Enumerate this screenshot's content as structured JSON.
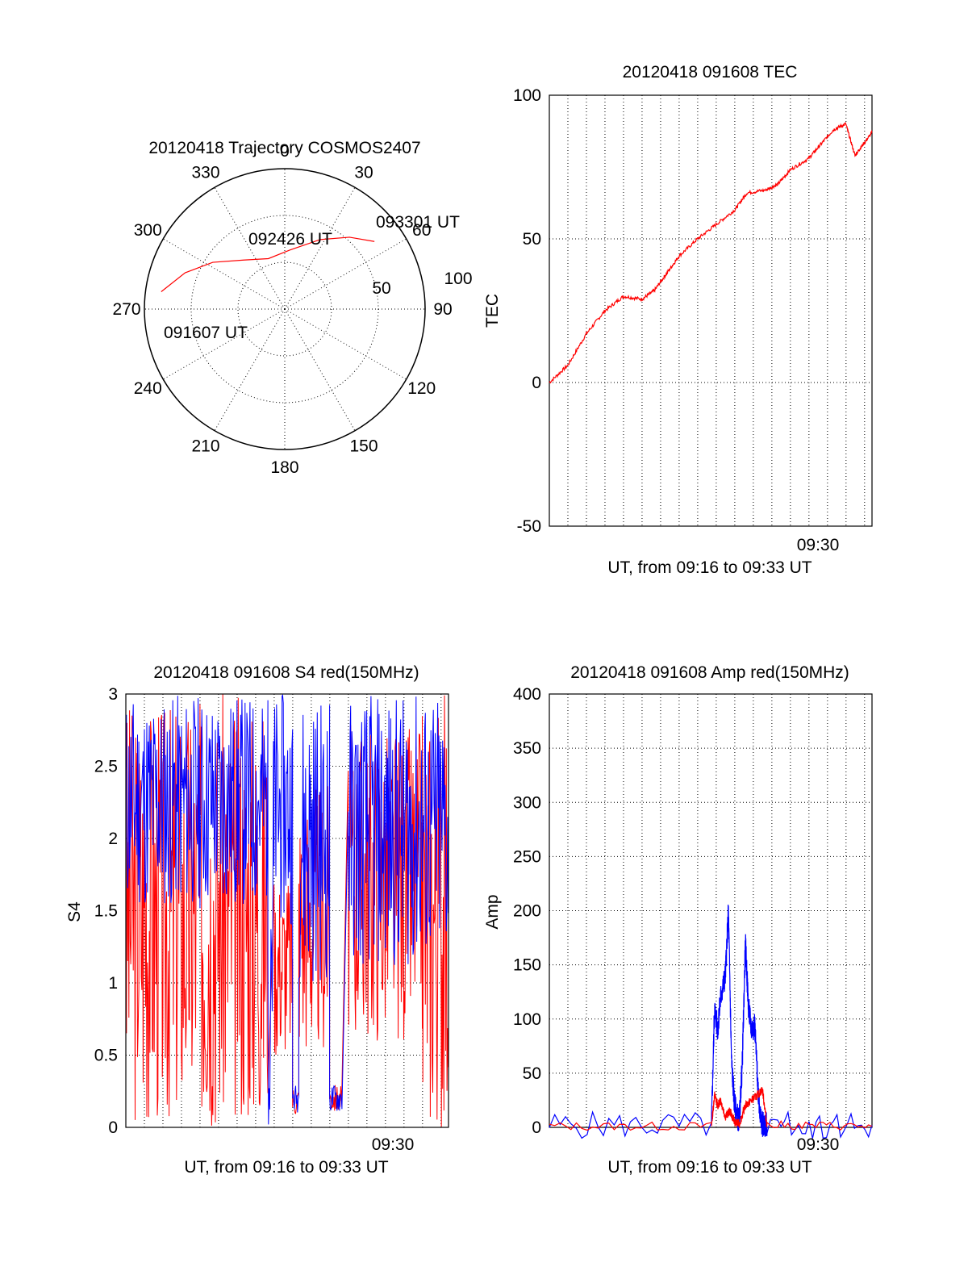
{
  "colors": {
    "red": "#ff0000",
    "blue": "#0000ff",
    "axis": "#000000"
  },
  "chart_data": [
    {
      "type": "polar",
      "title": "20120418 Trajectory COSMOS2407",
      "azimuth_labels": [
        "0",
        "30",
        "60",
        "90",
        "120",
        "150",
        "180",
        "210",
        "240",
        "270",
        "300",
        "330"
      ],
      "radius_labels": [
        "50",
        "100"
      ],
      "elevation_range": [
        0,
        90
      ],
      "series": [
        {
          "color": "red",
          "points": [
            {
              "az": 278,
              "el": 10
            },
            {
              "az": 290,
              "el": 22
            },
            {
              "az": 303,
              "el": 35
            },
            {
              "az": 320,
              "el": 49
            },
            {
              "az": 342,
              "el": 56
            },
            {
              "az": 5,
              "el": 52
            },
            {
              "az": 27,
              "el": 40
            },
            {
              "az": 42,
              "el": 28
            },
            {
              "az": 53,
              "el": 18
            }
          ]
        }
      ],
      "annotations": [
        "093301 UT",
        "092426 UT",
        "091607 UT"
      ]
    },
    {
      "type": "line",
      "title": "20120418 091608 TEC",
      "xlabel": "UT, from 09:16 to 09:33 UT",
      "ylabel": "TEC",
      "xlim": [
        0,
        1045
      ],
      "ylim": [
        -50,
        100
      ],
      "yticks": [
        "-50",
        "0",
        "50",
        "100"
      ],
      "xtick_label": "09:30",
      "grid": true,
      "series": [
        {
          "color": "red",
          "x": [
            0,
            60,
            120,
            180,
            240,
            300,
            340,
            380,
            420,
            480,
            540,
            600,
            640,
            700,
            740,
            780,
            840,
            880,
            920,
            960,
            990,
            1010,
            1045
          ],
          "y": [
            0,
            6,
            17,
            25,
            30,
            29,
            32,
            38,
            44,
            50,
            55,
            60,
            66,
            67,
            69,
            74,
            78,
            83,
            88,
            90,
            79,
            82,
            87
          ]
        }
      ]
    },
    {
      "type": "line",
      "title": "20120418 091608 S4 red(150MHz)",
      "xlabel": "UT, from 09:16 to 09:33 UT",
      "ylabel": "S4",
      "xlim": [
        0,
        1045
      ],
      "ylim": [
        0,
        3
      ],
      "yticks": [
        "0",
        "0.5",
        "1",
        "1.5",
        "2",
        "2.5",
        "3"
      ],
      "xtick_label": "09:30",
      "grid": true,
      "series": [
        {
          "color": "red",
          "segments": [
            [
              0,
              250,
              0,
              3
            ],
            [
              250,
              460,
              0.0,
              3
            ],
            [
              480,
              540,
              0.5,
              1.8
            ],
            [
              540,
              560,
              0.08,
              0.3
            ],
            [
              560,
              660,
              0.5,
              2.4
            ],
            [
              660,
              700,
              0.1,
              0.3
            ],
            [
              720,
              960,
              0.6,
              2.8
            ],
            [
              960,
              1045,
              0,
              3
            ]
          ]
        },
        {
          "color": "blue",
          "segments": [
            [
              0,
              460,
              1.5,
              3
            ],
            [
              460,
              480,
              0,
              3
            ],
            [
              480,
              540,
              1.4,
              3
            ],
            [
              540,
              560,
              0.1,
              0.3
            ],
            [
              560,
              660,
              1.0,
              3
            ],
            [
              660,
              700,
              0.1,
              0.3
            ],
            [
              720,
              1045,
              1.1,
              3
            ]
          ]
        }
      ]
    },
    {
      "type": "line",
      "title": "20120418 091608 Amp red(150MHz)",
      "xlabel": "UT, from 09:16 to 09:33 UT",
      "ylabel": "Amp",
      "xlim": [
        0,
        1045
      ],
      "ylim": [
        0,
        400
      ],
      "yticks": [
        "0",
        "50",
        "100",
        "150",
        "200",
        "250",
        "300",
        "350",
        "400"
      ],
      "xtick_label": "09:30",
      "grid": true,
      "series": [
        {
          "color": "blue",
          "x": [
            0,
            525,
            535,
            545,
            555,
            570,
            580,
            590,
            600,
            615,
            625,
            635,
            645,
            655,
            665,
            675,
            685,
            695,
            705,
            1045
          ],
          "y": [
            2,
            2,
            110,
            90,
            120,
            140,
            200,
            60,
            20,
            5,
            60,
            170,
            110,
            90,
            95,
            40,
            5,
            2,
            2,
            2
          ]
        },
        {
          "color": "red",
          "x": [
            0,
            525,
            535,
            545,
            555,
            570,
            585,
            600,
            615,
            635,
            655,
            675,
            690,
            705,
            1045
          ],
          "y": [
            1,
            1,
            30,
            20,
            25,
            10,
            15,
            5,
            3,
            20,
            25,
            30,
            35,
            2,
            1
          ]
        }
      ]
    }
  ]
}
